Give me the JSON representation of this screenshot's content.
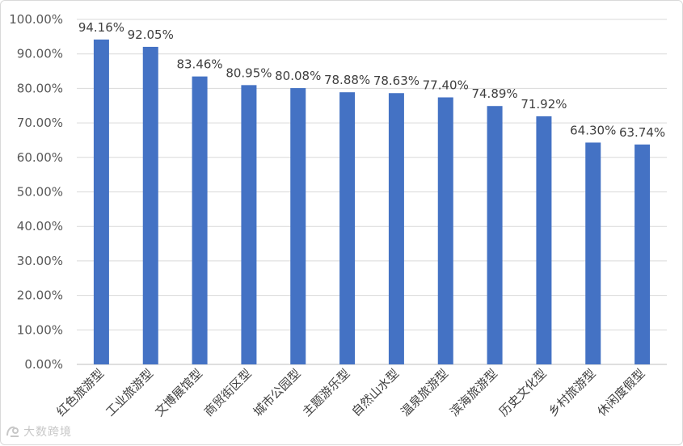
{
  "chart_data": {
    "type": "bar",
    "categories": [
      "红色旅游型",
      "工业旅游型",
      "文博展馆型",
      "商贸街区型",
      "城市公园型",
      "主题游乐型",
      "自然山水型",
      "温泉旅游型",
      "滨海旅游型",
      "历史文化型",
      "乡村旅游型",
      "休闲度假型"
    ],
    "values": [
      94.16,
      92.05,
      83.46,
      80.95,
      80.08,
      78.88,
      78.63,
      77.4,
      74.89,
      71.92,
      64.3,
      63.74
    ],
    "data_labels": [
      "94.16%",
      "92.05%",
      "83.46%",
      "80.95%",
      "80.08%",
      "78.88%",
      "78.63%",
      "77.40%",
      "74.89%",
      "71.92%",
      "64.30%",
      "63.74%"
    ],
    "ylim": [
      0,
      100
    ],
    "y_ticks": [
      0,
      10,
      20,
      30,
      40,
      50,
      60,
      70,
      80,
      90,
      100
    ],
    "y_tick_labels": [
      "0.00%",
      "10.00%",
      "20.00%",
      "30.00%",
      "40.00%",
      "50.00%",
      "60.00%",
      "70.00%",
      "80.00%",
      "90.00%",
      "100.00%"
    ],
    "title": "",
    "xlabel": "",
    "ylabel": "",
    "grid": true,
    "bar_color": "#4472c4"
  },
  "watermark": {
    "text": "大数跨境"
  }
}
